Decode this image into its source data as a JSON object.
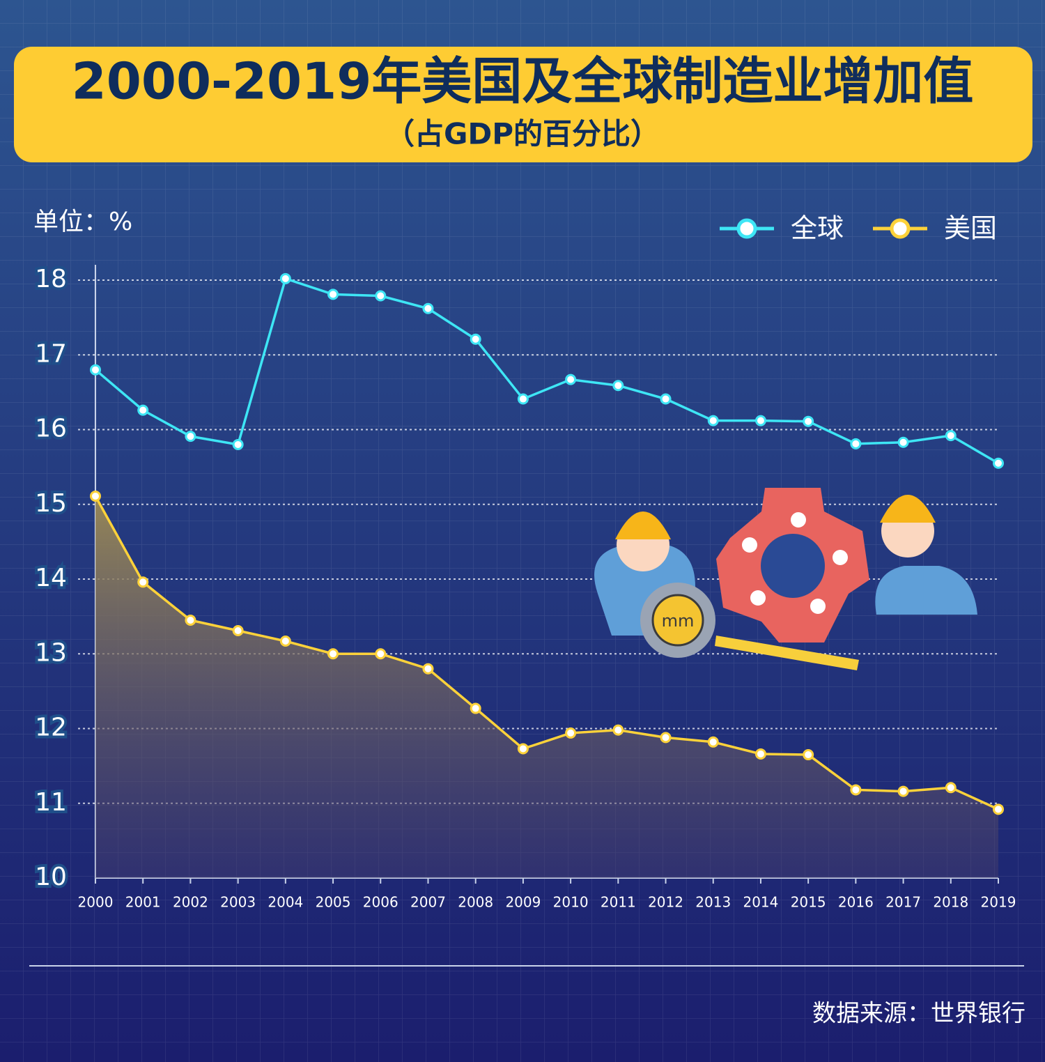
{
  "chart_data": {
    "type": "line",
    "title": "2000-2019年美国及全球制造业增加值",
    "subtitle": "（占GDP的百分比）",
    "unit_label": "单位：%",
    "source": "数据来源：世界银行",
    "categories": [
      "2000",
      "2001",
      "2002",
      "2003",
      "2004",
      "2005",
      "2006",
      "2007",
      "2008",
      "2009",
      "2010",
      "2011",
      "2012",
      "2013",
      "2014",
      "2015",
      "2016",
      "2017",
      "2018",
      "2019"
    ],
    "series": [
      {
        "name": "全球",
        "color": "#3ee6f5",
        "values": [
          16.8,
          16.26,
          15.91,
          15.8,
          18.02,
          17.81,
          17.79,
          17.62,
          17.21,
          16.41,
          16.67,
          16.59,
          16.41,
          16.12,
          16.12,
          16.11,
          15.81,
          15.83,
          15.92,
          15.55
        ]
      },
      {
        "name": "美国",
        "color": "#fdd23a",
        "values": [
          15.11,
          13.96,
          13.45,
          13.31,
          13.17,
          13.0,
          13.0,
          12.8,
          12.27,
          11.73,
          11.94,
          11.98,
          11.88,
          11.82,
          11.66,
          11.65,
          11.18,
          11.16,
          11.21,
          10.92
        ]
      }
    ],
    "ylim": [
      10,
      18
    ],
    "yticks": [
      10,
      11,
      12,
      13,
      14,
      15,
      16,
      17,
      18
    ],
    "grid": true
  }
}
